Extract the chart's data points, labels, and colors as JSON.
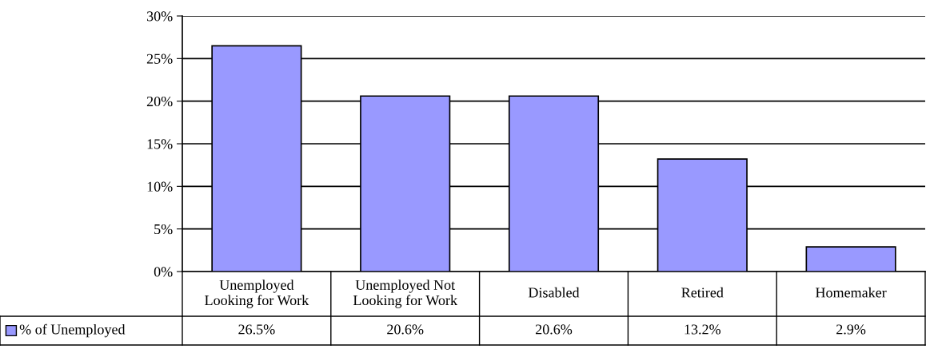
{
  "chart_data": {
    "type": "bar",
    "categories": [
      "Unemployed\nLooking for Work",
      "Unemployed Not\nLooking for Work",
      "Disabled",
      "Retired",
      "Homemaker"
    ],
    "series": [
      {
        "name": "% of Unemployed",
        "color": "#9999ff",
        "values": [
          26.5,
          20.6,
          20.6,
          13.2,
          2.9
        ],
        "value_labels": [
          "26.5%",
          "20.6%",
          "20.6%",
          "13.2%",
          "2.9%"
        ]
      }
    ],
    "ylim": [
      0,
      30
    ],
    "yticks": [
      {
        "value": 0,
        "label": "0%"
      },
      {
        "value": 5,
        "label": "5%"
      },
      {
        "value": 10,
        "label": "10%"
      },
      {
        "value": 15,
        "label": "15%"
      },
      {
        "value": 20,
        "label": "20%"
      },
      {
        "value": 25,
        "label": "25%"
      },
      {
        "value": 30,
        "label": "30%"
      }
    ],
    "grid": "y",
    "legend": "bottom left"
  }
}
